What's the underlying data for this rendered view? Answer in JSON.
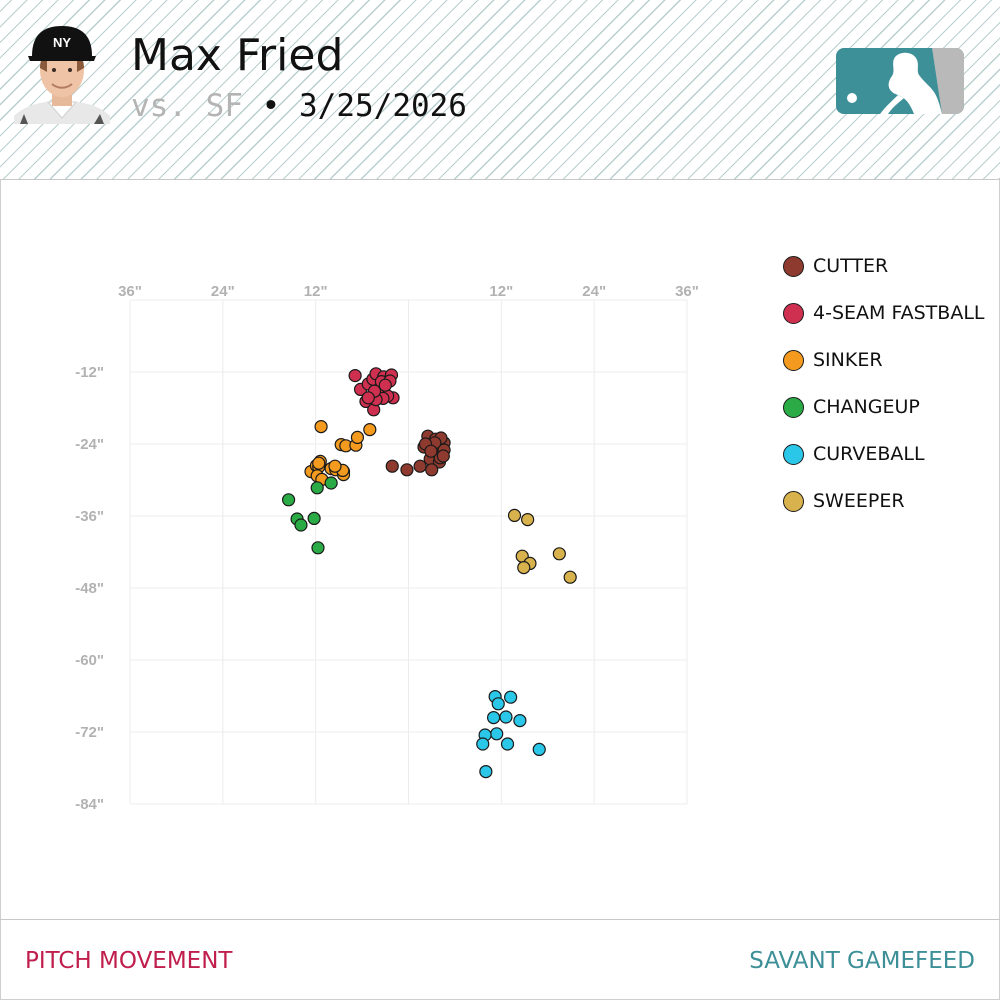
{
  "header": {
    "player_name": "Max Fried",
    "opponent": "vs. SF",
    "separator": "•",
    "date": "3/25/2026",
    "photo_icon": "player-headshot-icon",
    "logo_icon": "mlb-logo-icon",
    "logo_color": "#3d8f98"
  },
  "footer": {
    "left_label": "PITCH MOVEMENT",
    "right_label": "SAVANT GAMEFEED",
    "left_color": "#c01e4c",
    "right_color": "#3d8f98"
  },
  "chart_data": {
    "type": "scatter",
    "xlim": [
      -36,
      36
    ],
    "ylim": [
      -84,
      0
    ],
    "x_ticks": [
      -36,
      -24,
      -12,
      0,
      12,
      24,
      36
    ],
    "x_tick_labels": [
      "36\"",
      "24\"",
      "12\"",
      "",
      "12\"",
      "24\"",
      "36\""
    ],
    "y_ticks": [
      -12,
      -24,
      -36,
      -48,
      -60,
      -72,
      -84
    ],
    "y_tick_labels": [
      "-12\"",
      "-24\"",
      "-36\"",
      "-48\"",
      "-60\"",
      "-72\"",
      "-84\""
    ],
    "grid": true,
    "legend_position": "right",
    "series": [
      {
        "name": "CUTTER",
        "color": "#8e3a2e",
        "points": [
          [
            1.5,
            -27.7
          ],
          [
            2,
            -24.5
          ],
          [
            2.5,
            -22.7
          ],
          [
            3,
            -25
          ],
          [
            3.3,
            -23.8
          ],
          [
            3.5,
            -23.2
          ],
          [
            2.8,
            -26.5
          ],
          [
            3.6,
            -25.3
          ],
          [
            4,
            -24.2
          ],
          [
            4.6,
            -23.8
          ],
          [
            4.2,
            -23
          ],
          [
            4.6,
            -25
          ],
          [
            4,
            -27
          ],
          [
            4.1,
            -26.3
          ],
          [
            4.5,
            -26
          ],
          [
            3.4,
            -23.8
          ],
          [
            2.2,
            -24
          ],
          [
            2.9,
            -25.2
          ],
          [
            -0.2,
            -28.3
          ],
          [
            -2.1,
            -27.7
          ],
          [
            3,
            -28.3
          ]
        ]
      },
      {
        "name": "4-SEAM FASTBALL",
        "color": "#d0304f",
        "points": [
          [
            -6.9,
            -12.6
          ],
          [
            -6.2,
            -14.9
          ],
          [
            -5.5,
            -16.9
          ],
          [
            -5.2,
            -14
          ],
          [
            -4.6,
            -13.2
          ],
          [
            -4.2,
            -12.3
          ],
          [
            -3.6,
            -15.2
          ],
          [
            -3.2,
            -12.8
          ],
          [
            -2.6,
            -13.5
          ],
          [
            -2.2,
            -12.5
          ],
          [
            -4.5,
            -18.3
          ],
          [
            -3.5,
            -13.6
          ],
          [
            -2,
            -16.3
          ],
          [
            -2.7,
            -16
          ],
          [
            -3.3,
            -16.4
          ],
          [
            -4.2,
            -16.6
          ],
          [
            -2.4,
            -13.5
          ],
          [
            -4.4,
            -15.2
          ],
          [
            -5.2,
            -16.3
          ],
          [
            -3,
            -14.2
          ]
        ]
      },
      {
        "name": "SINKER",
        "color": "#f39a1f",
        "points": [
          [
            -11.3,
            -21.1
          ],
          [
            -11.4,
            -26.9
          ],
          [
            -12.6,
            -28.6
          ],
          [
            -11.9,
            -27.6
          ],
          [
            -11.6,
            -27.8
          ],
          [
            -11.6,
            -27.2
          ],
          [
            -10,
            -28.1
          ],
          [
            -9.4,
            -28.3
          ],
          [
            -8.4,
            -28.6
          ],
          [
            -8.4,
            -29.1
          ],
          [
            -8.7,
            -24.1
          ],
          [
            -8.1,
            -24.3
          ],
          [
            -6.8,
            -24.2
          ],
          [
            -8.5,
            -28.4
          ],
          [
            -11.8,
            -29.3
          ],
          [
            -11.2,
            -29.9
          ],
          [
            -6.6,
            -22.9
          ],
          [
            -5,
            -21.6
          ],
          [
            -9.5,
            -27.7
          ]
        ]
      },
      {
        "name": "CHANGEUP",
        "color": "#2aab46",
        "points": [
          [
            -15.5,
            -33.3
          ],
          [
            -11.8,
            -31.3
          ],
          [
            -10,
            -30.5
          ],
          [
            -14.4,
            -36.5
          ],
          [
            -13.9,
            -37.5
          ],
          [
            -12.2,
            -36.4
          ],
          [
            -11.7,
            -41.3
          ]
        ]
      },
      {
        "name": "CURVEBALL",
        "color": "#2ac7e8",
        "points": [
          [
            11.2,
            -66.1
          ],
          [
            11.6,
            -67.3
          ],
          [
            13.2,
            -66.2
          ],
          [
            11,
            -69.6
          ],
          [
            12.6,
            -69.5
          ],
          [
            14.4,
            -70.1
          ],
          [
            11.4,
            -72.3
          ],
          [
            9.9,
            -72.5
          ],
          [
            9.6,
            -74
          ],
          [
            12.8,
            -74
          ],
          [
            16.9,
            -74.9
          ],
          [
            10,
            -78.6
          ]
        ]
      },
      {
        "name": "SWEEPER",
        "color": "#d8b24c",
        "points": [
          [
            13.7,
            -35.9
          ],
          [
            15.4,
            -36.6
          ],
          [
            14.7,
            -42.7
          ],
          [
            15.7,
            -43.9
          ],
          [
            14.9,
            -44.6
          ],
          [
            19.5,
            -42.3
          ],
          [
            20.9,
            -46.2
          ]
        ]
      }
    ]
  }
}
